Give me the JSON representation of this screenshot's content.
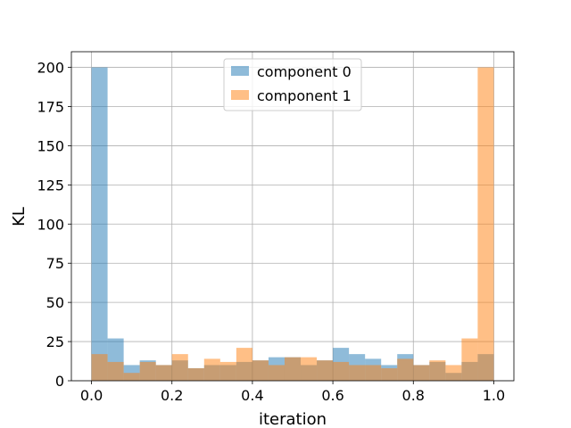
{
  "chart_data": {
    "type": "bar",
    "xlabel": "iteration",
    "ylabel": "KL",
    "xlim": [
      -0.05,
      1.05
    ],
    "ylim": [
      0,
      210
    ],
    "xticks": [
      0.0,
      0.2,
      0.4,
      0.6,
      0.8,
      1.0
    ],
    "xtick_labels": [
      "0.0",
      "0.2",
      "0.4",
      "0.6",
      "0.8",
      "1.0"
    ],
    "yticks": [
      0,
      25,
      50,
      75,
      100,
      125,
      150,
      175,
      200
    ],
    "ytick_labels": [
      "0",
      "25",
      "50",
      "75",
      "100",
      "125",
      "150",
      "175",
      "200"
    ],
    "grid": true,
    "legend_position": "top-center",
    "bin_edges": [
      0.0,
      0.04,
      0.08,
      0.12,
      0.16,
      0.2,
      0.24,
      0.28,
      0.32,
      0.36,
      0.4,
      0.44,
      0.48,
      0.52,
      0.56,
      0.6,
      0.64,
      0.68,
      0.72,
      0.76,
      0.8,
      0.84,
      0.88,
      0.92,
      0.96,
      1.0
    ],
    "series": [
      {
        "name": "component 0",
        "color": "#1f77b4",
        "values": [
          200,
          27,
          10,
          13,
          10,
          13,
          8,
          10,
          10,
          12,
          13,
          15,
          15,
          10,
          13,
          21,
          17,
          14,
          10,
          17,
          10,
          12,
          5,
          12,
          17
        ]
      },
      {
        "name": "component 1",
        "color": "#ff7f0e",
        "values": [
          17,
          12,
          5,
          12,
          10,
          17,
          8,
          14,
          12,
          21,
          13,
          10,
          15,
          15,
          13,
          12,
          10,
          10,
          8,
          14,
          10,
          13,
          10,
          27,
          200
        ]
      }
    ]
  }
}
